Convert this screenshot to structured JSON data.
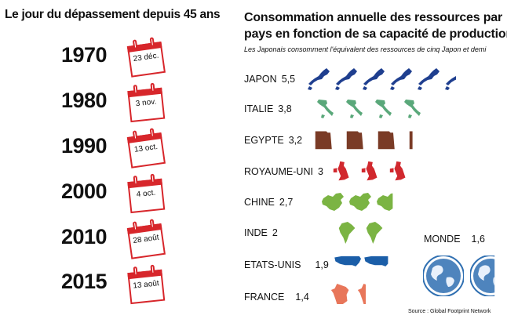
{
  "left_panel": {
    "title": "Le jour du dépassement depuis 45 ans",
    "rows": [
      {
        "year": "1970",
        "date": "23 déc."
      },
      {
        "year": "1980",
        "date": "3 nov."
      },
      {
        "year": "1990",
        "date": "13 oct."
      },
      {
        "year": "2000",
        "date": "4 oct."
      },
      {
        "year": "2010",
        "date": "28 août"
      },
      {
        "year": "2015",
        "date": "13 août"
      }
    ]
  },
  "right_panel": {
    "title_line1": "Consommation annuelle des ressources par",
    "title_line2": "pays en fonction de sa capacité de production",
    "subtitle": "Les Japonais consomment l'équivalent des ressources de cinq Japon et demi",
    "world_label": "MONDE",
    "world_value": "1,6",
    "source": "Source : Global Footprint Network"
  },
  "colors": {
    "calendar_red": "#d7262b",
    "JAPON": "#1f3f8f",
    "ITALIE": "#5aa87a",
    "EGYPTE": "#7a3b26",
    "ROYAUME-UNI": "#d1282e",
    "CHINE": "#7bb443",
    "INDE": "#7bb443",
    "ETATS-UNIS": "#1b5ea8",
    "FRANCE": "#e8765a",
    "MONDE": "#2f6fb1"
  },
  "chart_data": {
    "type": "bar",
    "title": "Consommation annuelle des ressources par pays en fonction de sa capacité de production",
    "categories": [
      "JAPON",
      "ITALIE",
      "EGYPTE",
      "ROYAUME-UNI",
      "CHINE",
      "INDE",
      "ETATS-UNIS",
      "FRANCE",
      "MONDE"
    ],
    "values": [
      5.5,
      3.8,
      3.2,
      3.0,
      2.7,
      2.0,
      1.9,
      1.4,
      1.6
    ],
    "value_labels": [
      "5,5",
      "3,8",
      "3,2",
      "3",
      "2,7",
      "2",
      "1,9",
      "1,4",
      "1,6"
    ]
  }
}
